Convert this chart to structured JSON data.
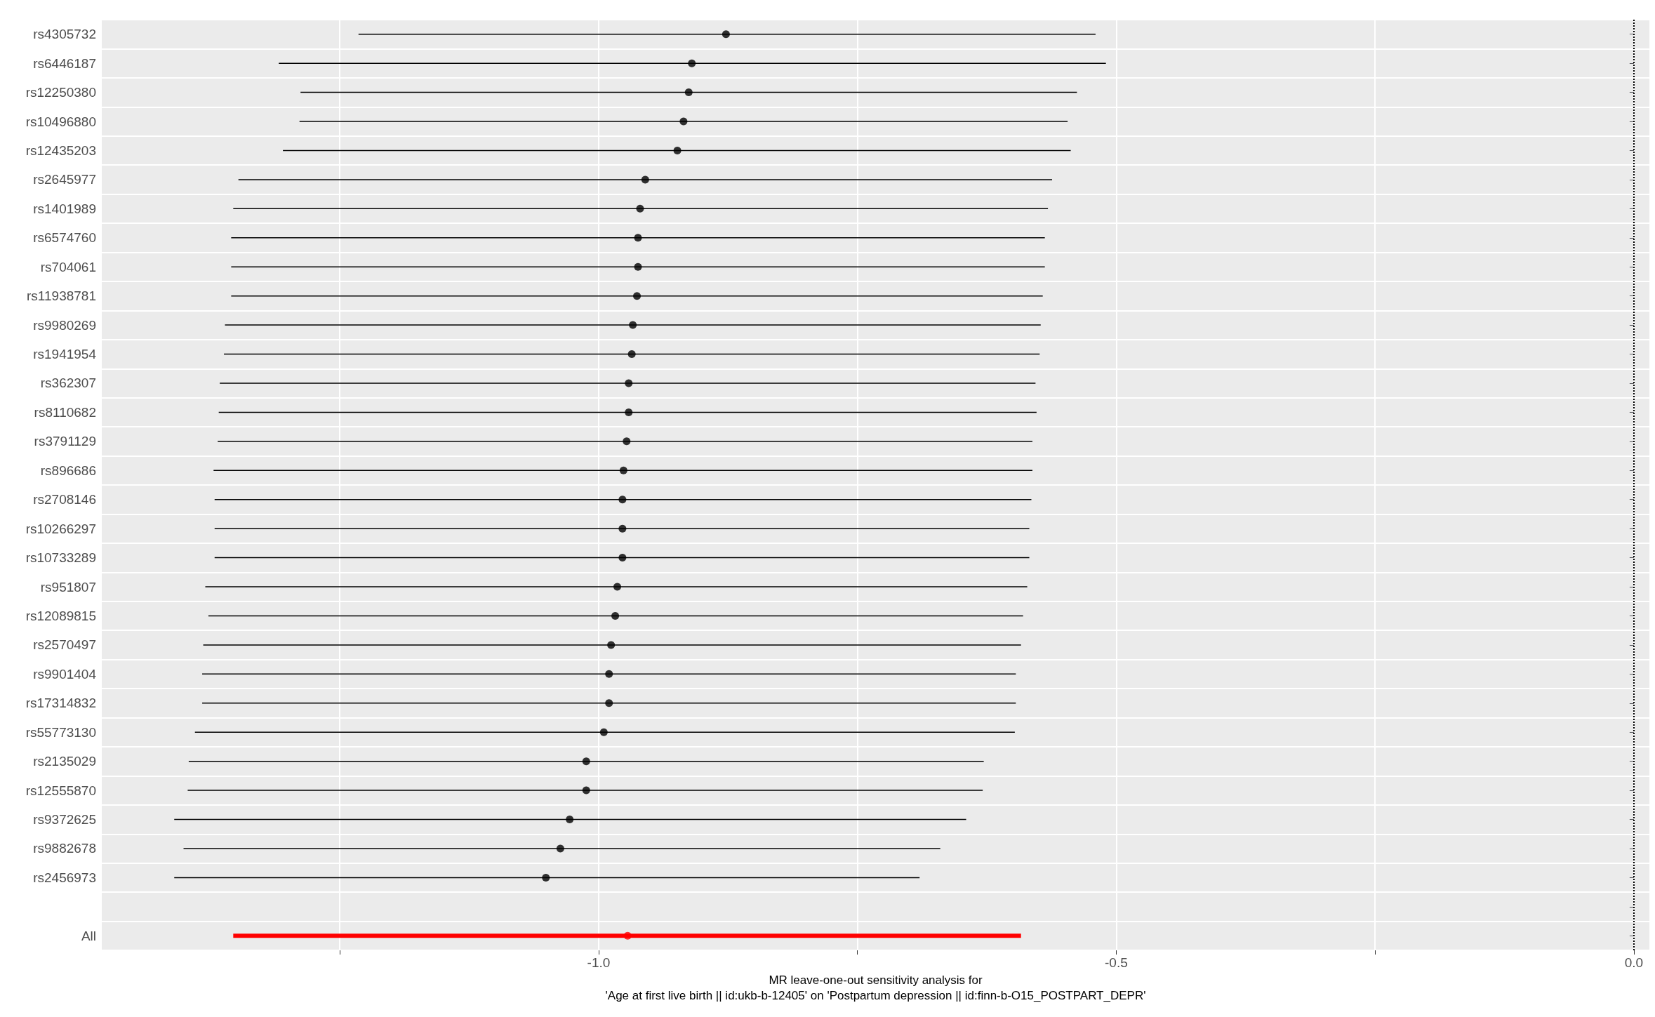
{
  "chart_data": {
    "type": "scatter",
    "orientation": "horizontal",
    "xlabel": "MR leave-one-out sensitivity analysis for\n'Age at first live birth || id:ukb-b-12405' on 'Postpartum depression || id:finn-b-O15_POSTPART_DEPR'",
    "categories": [
      "rs4305732",
      "rs6446187",
      "rs12250380",
      "rs10496880",
      "rs12435203",
      "rs2645977",
      "rs1401989",
      "rs6574760",
      "rs704061",
      "rs11938781",
      "rs9980269",
      "rs1941954",
      "rs362307",
      "rs8110682",
      "rs3791129",
      "rs896686",
      "rs2708146",
      "rs10266297",
      "rs10733289",
      "rs951807",
      "rs12089815",
      "rs2570497",
      "rs9901404",
      "rs17314832",
      "rs55773130",
      "rs2135029",
      "rs12555870",
      "rs9372625",
      "rs9882678",
      "rs2456973",
      null,
      "All"
    ],
    "series": [
      {
        "color": "#000000",
        "values": [
          -0.877,
          -0.91,
          -0.913,
          -0.918,
          -0.924,
          -0.955,
          -0.96,
          -0.962,
          -0.962,
          -0.963,
          -0.967,
          -0.968,
          -0.971,
          -0.971,
          -0.973,
          -0.976,
          -0.977,
          -0.977,
          -0.977,
          -0.982,
          -0.984,
          -0.988,
          -0.99,
          -0.99,
          -0.995,
          -1.012,
          -1.012,
          -1.028,
          -1.037,
          -1.051,
          null,
          null
        ],
        "errors": [
          [
            -1.232,
            -0.52
          ],
          [
            -1.309,
            -0.51
          ],
          [
            -1.288,
            -0.538
          ],
          [
            -1.289,
            -0.547
          ],
          [
            -1.305,
            -0.544
          ],
          [
            -1.348,
            -0.562
          ],
          [
            -1.353,
            -0.566
          ],
          [
            -1.355,
            -0.569
          ],
          [
            -1.355,
            -0.569
          ],
          [
            -1.355,
            -0.571
          ],
          [
            -1.361,
            -0.573
          ],
          [
            -1.362,
            -0.574
          ],
          [
            -1.366,
            -0.578
          ],
          [
            -1.367,
            -0.577
          ],
          [
            -1.368,
            -0.581
          ],
          [
            -1.372,
            -0.581
          ],
          [
            -1.371,
            -0.582
          ],
          [
            -1.371,
            -0.584
          ],
          [
            -1.371,
            -0.584
          ],
          [
            -1.38,
            -0.586
          ],
          [
            -1.377,
            -0.59
          ],
          [
            -1.382,
            -0.592
          ],
          [
            -1.383,
            -0.597
          ],
          [
            -1.383,
            -0.597
          ],
          [
            -1.39,
            -0.598
          ],
          [
            -1.396,
            -0.628
          ],
          [
            -1.397,
            -0.629
          ],
          [
            -1.41,
            -0.645
          ],
          [
            -1.401,
            -0.67
          ],
          [
            -1.41,
            -0.69
          ],
          null,
          null
        ]
      },
      {
        "color": "#ff0000",
        "values": [
          null,
          null,
          null,
          null,
          null,
          null,
          null,
          null,
          null,
          null,
          null,
          null,
          null,
          null,
          null,
          null,
          null,
          null,
          null,
          null,
          null,
          null,
          null,
          null,
          null,
          null,
          null,
          null,
          null,
          null,
          null,
          -0.972
        ],
        "errors": [
          null,
          null,
          null,
          null,
          null,
          null,
          null,
          null,
          null,
          null,
          null,
          null,
          null,
          null,
          null,
          null,
          null,
          null,
          null,
          null,
          null,
          null,
          null,
          null,
          null,
          null,
          null,
          null,
          null,
          null,
          null,
          [
            -1.353,
            -0.592
          ]
        ]
      }
    ],
    "xlim": [
      -1.48,
      0.015
    ],
    "xticks": [
      {
        "value": -1.25,
        "label": null
      },
      {
        "value": -1.0,
        "label": "-1.0"
      },
      {
        "value": -0.75,
        "label": null
      },
      {
        "value": -0.5,
        "label": "-0.5"
      },
      {
        "value": -0.25,
        "label": null
      },
      {
        "value": 0,
        "label": "0.0"
      }
    ],
    "ref_lines": [
      {
        "axis": "x",
        "value": 0,
        "line_style": "dotted",
        "color": "#000000"
      }
    ],
    "grid": true,
    "marker": "circle"
  }
}
